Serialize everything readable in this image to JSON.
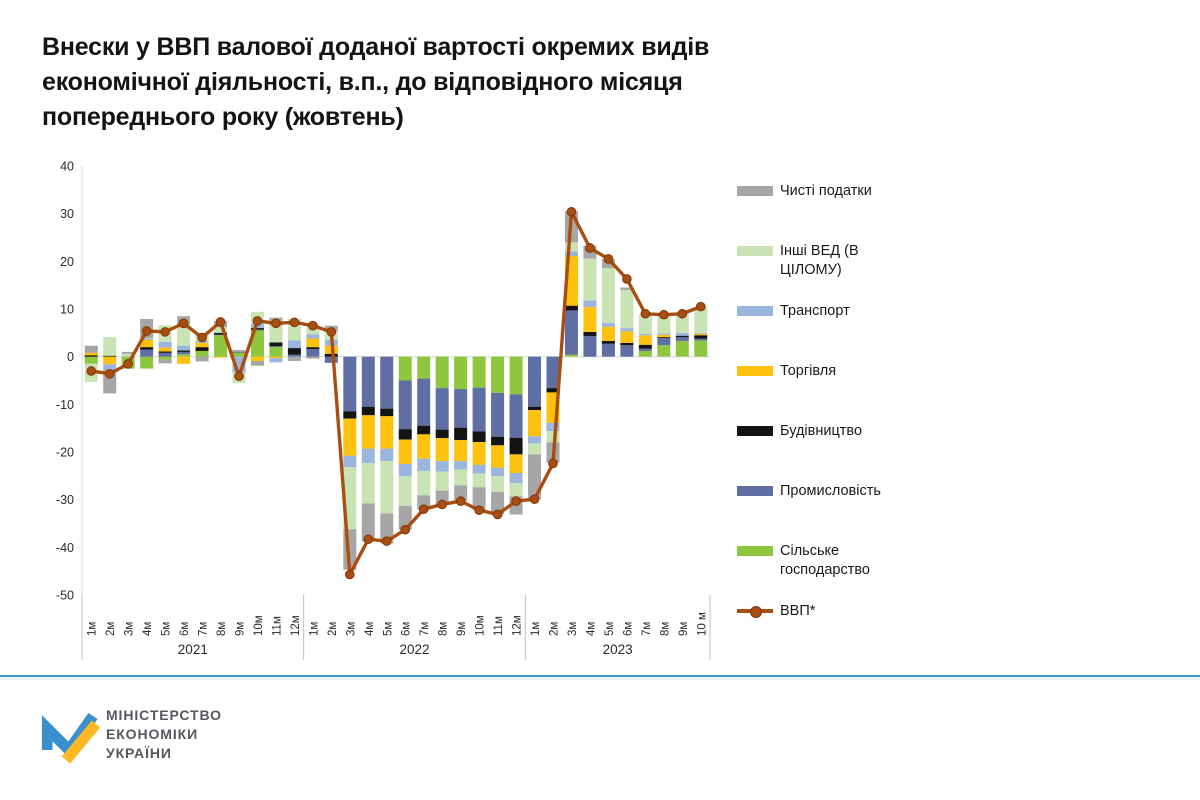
{
  "title_lines": [
    "Внески у ВВП валової доданої вартості окремих видів",
    "економічної діяльності, в.п., до відповідного місяця",
    "попереднього року (жовтень)"
  ],
  "colors": {
    "taxes": "#a6a6a6",
    "other": "#c9e3b5",
    "transport": "#9ab5de",
    "trade": "#fdc10e",
    "construction": "#141414",
    "industry": "#5f6fa3",
    "agriculture": "#8ec63f",
    "gdp_line": "#a84e10",
    "gdp_marker_edge": "#7d3608",
    "accent_rule": "#4493c4",
    "logo_blue": "#3a8fcd",
    "logo_yellow": "#fdb924",
    "axis_text": "#2b2b2b",
    "grid": "#d9d9d9",
    "separator": "#bfbfbf"
  },
  "legend": [
    {
      "label": "Чисті податки",
      "key": "taxes",
      "type": "box"
    },
    {
      "label": "Інші ВЕД (В ЦІЛОМУ)",
      "key": "other",
      "type": "box"
    },
    {
      "label": "Транспорт",
      "key": "transport",
      "type": "box"
    },
    {
      "label": "Торгівля",
      "key": "trade",
      "type": "box"
    },
    {
      "label": "Будівництво",
      "key": "construction",
      "type": "box"
    },
    {
      "label": "Промисловість",
      "key": "industry",
      "type": "box"
    },
    {
      "label": "Сільське господарство",
      "key": "agriculture",
      "type": "box"
    },
    {
      "label": "ВВП*",
      "key": "gdp_line",
      "type": "line"
    }
  ],
  "chart_data": {
    "type": "bar",
    "subtype": "stacked-bars-with-line-overlay",
    "title": "Внески у ВВП валової доданої вартості окремих видів економічної діяльності, в.п., до відповідного місяця попереднього року (жовтень)",
    "xlabel": "",
    "ylabel": "",
    "grid": "zero-line-only",
    "legend_position": "right",
    "y_axis": {
      "min": -50,
      "max": 40,
      "step": 10,
      "ticks": [
        40,
        30,
        20,
        10,
        0,
        -10,
        -20,
        -30,
        -40,
        -50
      ]
    },
    "year_groups": [
      {
        "year": "2021",
        "count": 12
      },
      {
        "year": "2022",
        "count": 12
      },
      {
        "year": "2023",
        "count": 10
      }
    ],
    "categories": [
      "1м",
      "2м",
      "3м",
      "4м",
      "5м",
      "6м",
      "7м",
      "8м",
      "9м",
      "10м",
      "11м",
      "12м",
      "1м",
      "2м",
      "3м",
      "4м",
      "5м",
      "6м",
      "7м",
      "8м",
      "9м",
      "10м",
      "11м",
      "12м",
      "1м",
      "2м",
      "3м",
      "4м",
      "5м",
      "6м",
      "7м",
      "8м",
      "9м",
      "10 м"
    ],
    "series": [
      {
        "name": "Сільське господарство",
        "color_key": "agriculture",
        "values": [
          -1.5,
          0,
          -2.5,
          -2.5,
          -0.6,
          0.5,
          1.2,
          4.5,
          0.8,
          5.5,
          2,
          0,
          0,
          0,
          0,
          0,
          0,
          -5,
          -4.6,
          -6.6,
          -6.8,
          -6.5,
          -7.6,
          -7.9,
          0,
          0,
          0.4,
          0,
          0,
          0,
          1.2,
          2.4,
          3.3,
          3.4
        ]
      },
      {
        "name": "Промисловість",
        "color_key": "industry",
        "values": [
          0,
          0,
          0,
          1.5,
          0.8,
          0.5,
          0,
          0.1,
          0,
          0.2,
          0.2,
          0.4,
          1.6,
          -1.3,
          -11.5,
          -10.5,
          -10.9,
          -10.2,
          -9.9,
          -8.7,
          -8.1,
          -9.2,
          -9.2,
          -9.1,
          -10.5,
          -6.6,
          9.3,
          4.3,
          2.7,
          2.4,
          0.5,
          1.5,
          0.8,
          0.4
        ]
      },
      {
        "name": "Будівництво",
        "color_key": "construction",
        "values": [
          0.3,
          0.2,
          0,
          0.5,
          0.3,
          0.3,
          0.8,
          0.4,
          0.1,
          0.3,
          0.8,
          1.4,
          0.4,
          0.6,
          -1.5,
          -1.8,
          -1.6,
          -2.2,
          -1.8,
          -1.8,
          -2.6,
          -2.2,
          -1.8,
          -3.5,
          -0.7,
          -0.9,
          1,
          0.9,
          0.6,
          0.5,
          0.8,
          0.2,
          0.3,
          0.7
        ]
      },
      {
        "name": "Торгівля",
        "color_key": "trade",
        "values": [
          0.5,
          -1.6,
          0,
          1.5,
          0.8,
          -1.5,
          0.9,
          -0.2,
          0,
          -0.9,
          -0.3,
          0,
          1.8,
          1.7,
          -7.8,
          -7,
          -6.8,
          -5.1,
          -5.1,
          -4.8,
          -4.4,
          -4.8,
          -4.7,
          -3.9,
          -5.5,
          -6.4,
          10.4,
          5.2,
          3,
          2.4,
          2,
          0.5,
          0,
          0.3
        ]
      },
      {
        "name": "Транспорт",
        "color_key": "transport",
        "values": [
          0,
          -1,
          0.1,
          0.3,
          1.2,
          1,
          0.4,
          0,
          -3.3,
          1,
          -0.9,
          1.6,
          0.9,
          1.2,
          -2.4,
          -3,
          -2.6,
          -2.6,
          -2.6,
          -2.2,
          -1.8,
          -1.8,
          -1.8,
          -2.1,
          -1.5,
          -1.7,
          1,
          1.4,
          0.8,
          0.7,
          0.3,
          0.3,
          0.6,
          0.2
        ]
      },
      {
        "name": "Інші ВЕД (В ЦІЛОМУ)",
        "color_key": "other",
        "values": [
          -3.8,
          3.9,
          0.5,
          0.1,
          3.5,
          4.5,
          1.7,
          1.2,
          -2.2,
          2.4,
          3.5,
          4.5,
          2.2,
          1.8,
          -13,
          -8.5,
          -11,
          -6.2,
          -5.1,
          -4,
          -3.3,
          -2.9,
          -3.3,
          -2.8,
          -2.3,
          -2.4,
          1.9,
          8.8,
          11.5,
          8,
          4,
          4,
          4,
          5.5
        ]
      },
      {
        "name": "Чисті податки",
        "color_key": "taxes",
        "values": [
          1.5,
          -5.1,
          0.4,
          4,
          -0.8,
          1.7,
          -1,
          1.3,
          0.5,
          -1,
          1.7,
          -0.9,
          -0.4,
          1.2,
          -8.5,
          -8,
          -6.3,
          -5,
          -3,
          -3,
          -3.3,
          -4.8,
          -4.7,
          -3.8,
          -9.4,
          -4.2,
          6.5,
          2.7,
          1.9,
          0.5,
          0,
          0,
          0,
          0
        ]
      }
    ],
    "line_series": {
      "name": "ВВП*",
      "color_key": "gdp_line",
      "values": [
        -3,
        -3.6,
        -1.5,
        5.4,
        5.2,
        7,
        4,
        7.3,
        -4.1,
        7.5,
        7,
        7.2,
        6.5,
        5.2,
        -45.7,
        -38.3,
        -38.7,
        -36.3,
        -32,
        -31,
        -30.3,
        -32.2,
        -33.1,
        -30.3,
        -29.9,
        -22.4,
        30.4,
        22.8,
        20.5,
        16.3,
        9,
        8.8,
        9,
        10.5
      ]
    }
  },
  "footer": {
    "org_lines": [
      "МІНІСТЕРСТВО",
      "ЕКОНОМІКИ",
      "УКРАЇНИ"
    ]
  }
}
